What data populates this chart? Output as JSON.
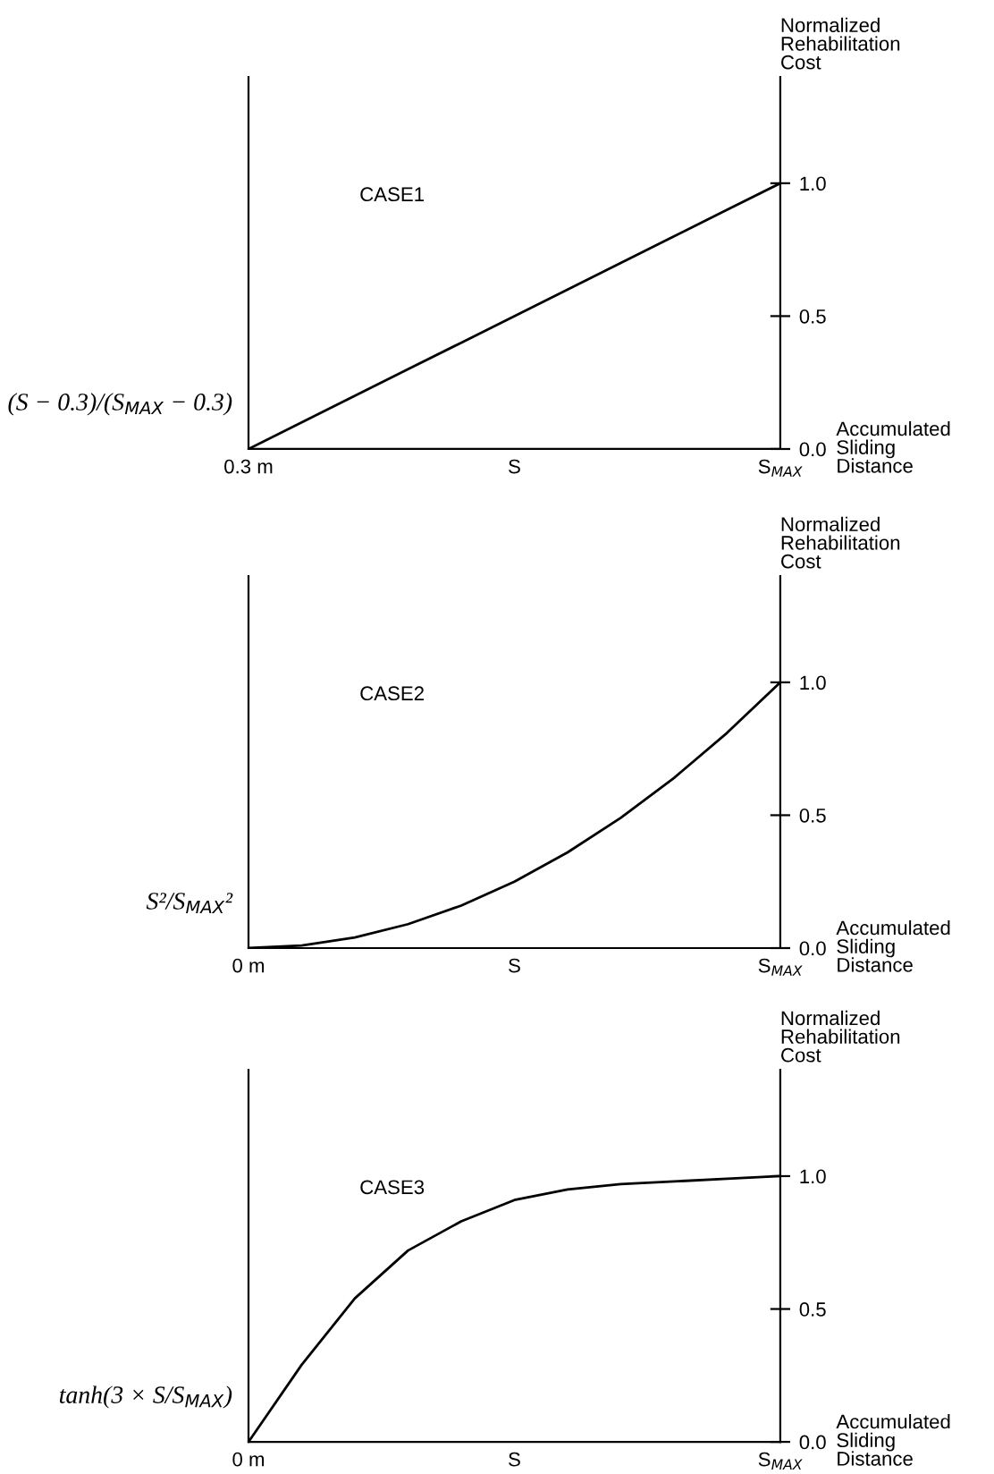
{
  "chart_data": [
    {
      "type": "line",
      "title": "CASE1",
      "ylabel": "Normalized\nRehabilitation\nCost",
      "xlabel": "Accumulated\nSliding\nDistance",
      "annotations": [
        "(S − 0.3)/(S$_{MAX}$ − 0.3)"
      ],
      "categories": [
        "0.3 m",
        null,
        null,
        null,
        null,
        "S",
        null,
        null,
        null,
        null,
        "S$_{MAX}$"
      ],
      "series": [
        {
          "color": "#000000",
          "values": [
            0,
            0.1,
            0.2,
            0.3,
            0.4,
            0.5,
            0.6,
            0.7,
            0.8,
            0.9,
            1
          ]
        }
      ],
      "ylim": [
        0,
        1.4
      ],
      "yticks": [
        {
          "value": 0,
          "label": "0.0"
        },
        {
          "value": 0.5,
          "label": "0.5"
        },
        {
          "value": 1,
          "label": "1.0"
        }
      ],
      "legend": false,
      "marker": "none",
      "line_style": "solid"
    },
    {
      "type": "line",
      "title": "CASE2",
      "ylabel": "Normalized\nRehabilitation\nCost",
      "xlabel": "Accumulated\nSliding\nDistance",
      "annotations": [
        "S²/S$_{MAX}$²"
      ],
      "categories": [
        "0 m",
        null,
        null,
        null,
        null,
        "S",
        null,
        null,
        null,
        null,
        "S$_{MAX}$"
      ],
      "series": [
        {
          "color": "#000000",
          "values": [
            0,
            0.01,
            0.04,
            0.09,
            0.16,
            0.25,
            0.36,
            0.49,
            0.64,
            0.81,
            1
          ]
        }
      ],
      "ylim": [
        0,
        1.4
      ],
      "yticks": [
        {
          "value": 0,
          "label": "0.0"
        },
        {
          "value": 0.5,
          "label": "0.5"
        },
        {
          "value": 1,
          "label": "1.0"
        }
      ],
      "legend": false,
      "marker": "none",
      "line_style": "solid"
    },
    {
      "type": "line",
      "title": "CASE3",
      "ylabel": "Normalized\nRehabilitation\nCost",
      "xlabel": "Accumulated\nSliding\nDistance",
      "annotations": [
        "tanh(3 × S/S$_{MAX}$)"
      ],
      "categories": [
        "0 m",
        null,
        null,
        null,
        null,
        "S",
        null,
        null,
        null,
        null,
        "S$_{MAX}$"
      ],
      "series": [
        {
          "color": "#000000",
          "values": [
            0,
            0.29,
            0.54,
            0.72,
            0.83,
            0.91,
            0.95,
            0.97,
            0.98,
            0.99,
            1
          ]
        }
      ],
      "ylim": [
        0,
        1.4
      ],
      "yticks": [
        {
          "value": 0,
          "label": "0.0"
        },
        {
          "value": 0.5,
          "label": "0.5"
        },
        {
          "value": 1,
          "label": "1.0"
        }
      ],
      "legend": false,
      "marker": "none",
      "line_style": "solid"
    }
  ]
}
